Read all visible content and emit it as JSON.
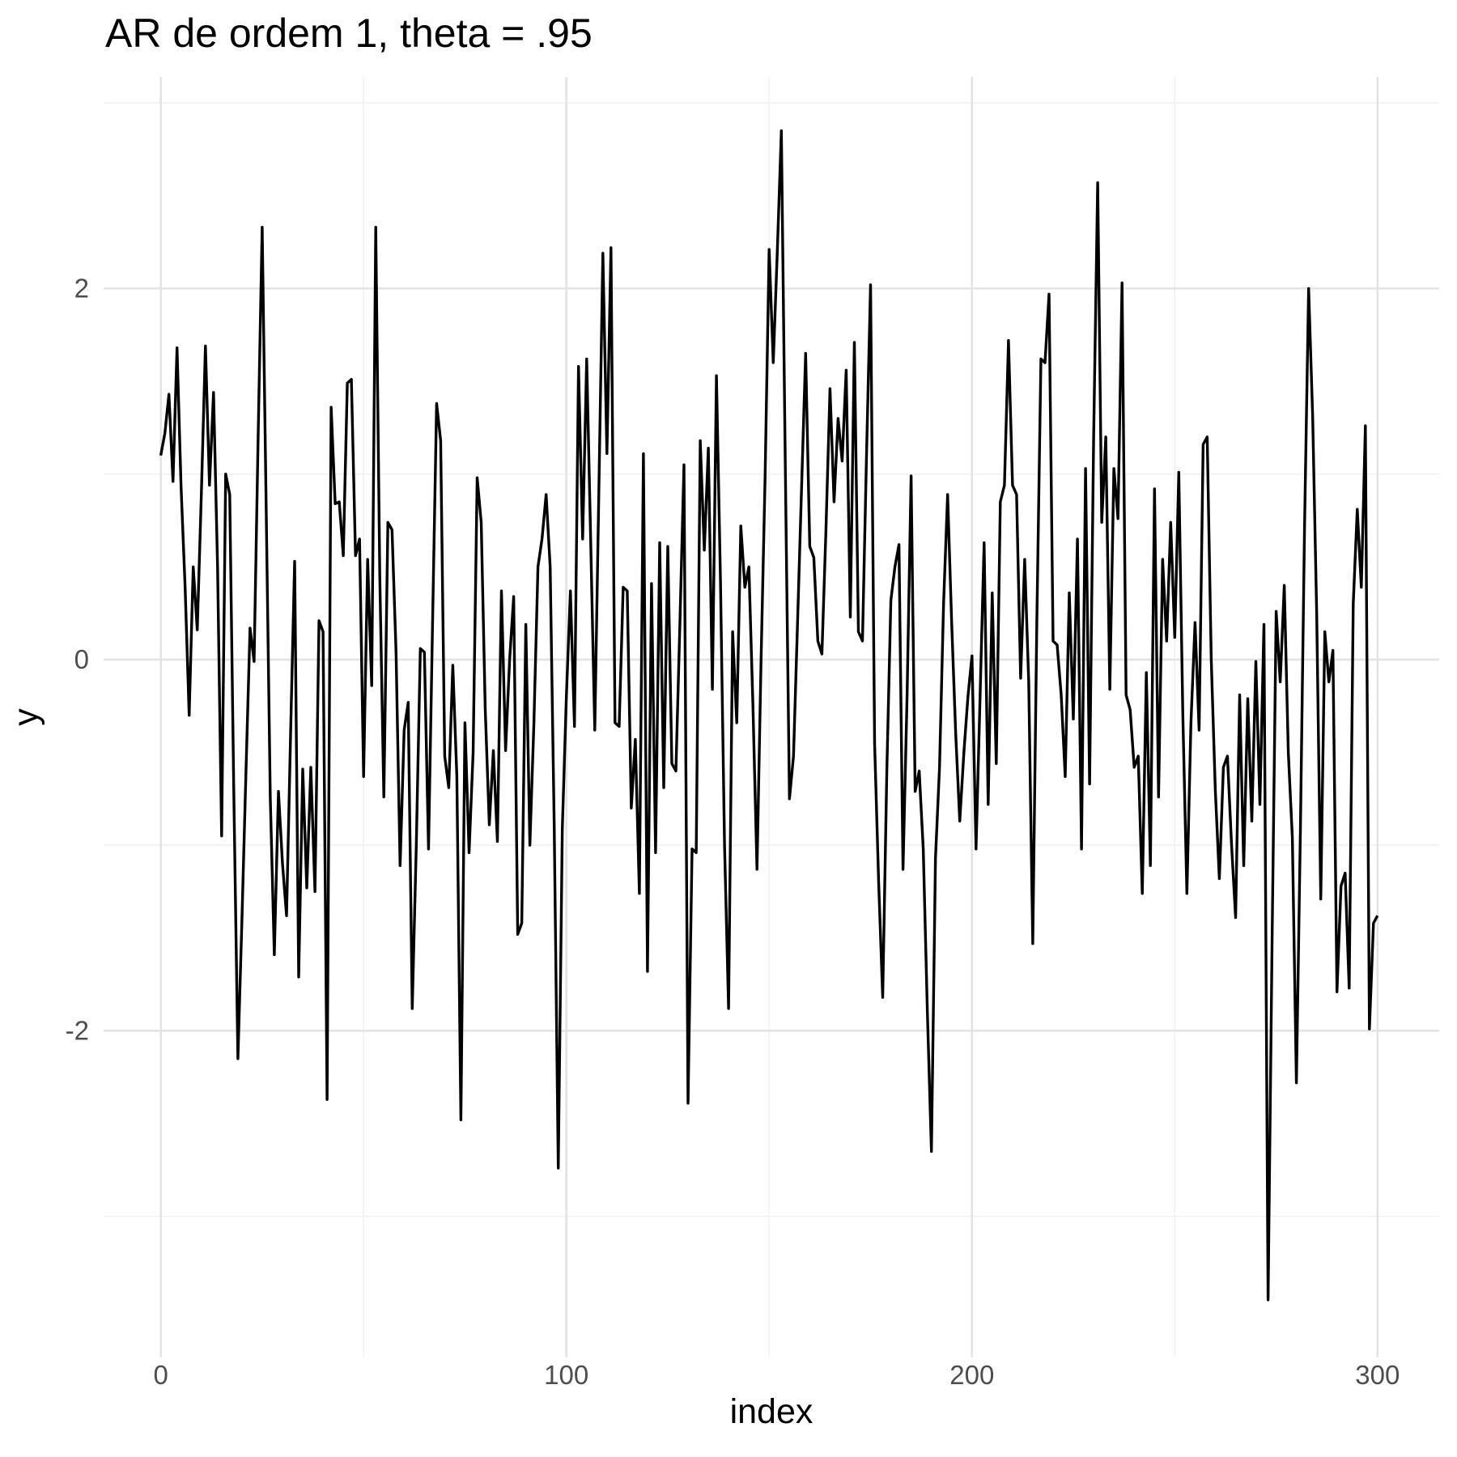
{
  "title": "AR de ordem 1, theta = .95",
  "colors": {
    "background": "#ffffff",
    "line": "#000000",
    "grid_major": "#e3e3e3",
    "grid_minor": "#f1f1f1",
    "tick_label": "#4d4d4d",
    "title_text": "#000000"
  },
  "chart_data": {
    "type": "line",
    "title": "AR de ordem 1, theta = .95",
    "xlabel": "index",
    "ylabel": "y",
    "legend_position": "none",
    "grid": true,
    "xlim": [
      -14.1,
      315.2
    ],
    "ylim": [
      -3.76,
      3.14
    ],
    "x_major_ticks": [
      0,
      100,
      200,
      300
    ],
    "x_minor_ticks": [
      50,
      150,
      250
    ],
    "y_major_ticks": [
      -2,
      0,
      2
    ],
    "y_minor_ticks": [
      -3,
      -1,
      1,
      3
    ],
    "x_tick_labels": [
      "0",
      "100",
      "200",
      "300"
    ],
    "y_tick_labels": [
      "-2",
      "0",
      "2"
    ],
    "x_start": 0,
    "x_step": 1,
    "values": [
      1.1,
      1.22,
      1.43,
      0.96,
      1.68,
      0.93,
      0.39,
      -0.3,
      0.5,
      0.16,
      0.9,
      1.69,
      0.94,
      1.44,
      0.5,
      -0.95,
      1.0,
      0.89,
      -0.7,
      -2.15,
      -1.4,
      -0.6,
      0.17,
      -0.01,
      1.2,
      2.33,
      0.8,
      -0.74,
      -1.59,
      -0.71,
      -1.1,
      -1.38,
      -0.4,
      0.53,
      -1.71,
      -0.59,
      -1.23,
      -0.58,
      -1.25,
      0.21,
      0.15,
      -2.37,
      1.36,
      0.84,
      0.85,
      0.56,
      1.49,
      1.51,
      0.56,
      0.65,
      -0.63,
      0.54,
      -0.14,
      2.33,
      0.45,
      -0.74,
      0.74,
      0.7,
      0.04,
      -1.11,
      -0.38,
      -0.23,
      -1.88,
      -1.0,
      0.06,
      0.04,
      -1.02,
      0.2,
      1.38,
      1.18,
      -0.52,
      -0.69,
      -0.03,
      -0.63,
      -2.48,
      -0.34,
      -1.04,
      -0.5,
      0.98,
      0.74,
      -0.27,
      -0.89,
      -0.49,
      -0.98,
      0.37,
      -0.49,
      0.0,
      0.34,
      -1.48,
      -1.42,
      0.19,
      -1.0,
      -0.34,
      0.5,
      0.65,
      0.89,
      0.5,
      -0.9,
      -2.74,
      -0.91,
      -0.2,
      0.37,
      -0.36,
      1.58,
      0.65,
      1.62,
      0.63,
      -0.38,
      0.9,
      2.19,
      1.11,
      2.22,
      -0.34,
      -0.36,
      0.39,
      0.37,
      -0.8,
      -0.43,
      -1.26,
      1.11,
      -1.68,
      0.41,
      -1.04,
      0.63,
      -0.69,
      0.61,
      -0.56,
      -0.6,
      0.2,
      1.05,
      -2.39,
      -1.02,
      -1.04,
      1.18,
      0.59,
      1.14,
      -0.16,
      1.53,
      0.42,
      -1.0,
      -1.88,
      0.15,
      -0.34,
      0.72,
      0.39,
      0.5,
      -0.25,
      -1.13,
      -0.01,
      0.98,
      2.21,
      1.6,
      2.2,
      2.85,
      1.0,
      -0.75,
      -0.52,
      0.2,
      0.93,
      1.65,
      0.61,
      0.55,
      0.1,
      0.03,
      0.7,
      1.46,
      0.85,
      1.3,
      1.07,
      1.56,
      0.23,
      1.71,
      0.15,
      0.1,
      1.1,
      2.02,
      -0.45,
      -1.2,
      -1.82,
      -0.6,
      0.32,
      0.5,
      0.62,
      -1.13,
      -0.2,
      0.99,
      -0.71,
      -0.6,
      -1.02,
      -1.9,
      -2.65,
      -1.07,
      -0.58,
      0.3,
      0.89,
      0.2,
      -0.4,
      -0.87,
      -0.5,
      -0.2,
      0.02,
      -1.02,
      -0.2,
      0.63,
      -0.78,
      0.36,
      -0.56,
      0.85,
      0.94,
      1.72,
      0.94,
      0.89,
      -0.1,
      0.54,
      -0.12,
      -1.53,
      0.2,
      1.62,
      1.6,
      1.97,
      0.1,
      0.08,
      -0.19,
      -0.63,
      0.36,
      -0.32,
      0.65,
      -1.02,
      1.03,
      -0.67,
      1.2,
      2.57,
      0.74,
      1.2,
      -0.16,
      1.03,
      0.76,
      2.03,
      -0.19,
      -0.27,
      -0.58,
      -0.52,
      -1.26,
      -0.07,
      -1.11,
      0.92,
      -0.74,
      0.54,
      0.1,
      0.74,
      0.12,
      1.01,
      -0.3,
      -1.26,
      -0.34,
      0.2,
      -0.38,
      1.16,
      1.2,
      0.0,
      -0.7,
      -1.18,
      -0.58,
      -0.52,
      -1.0,
      -1.39,
      -0.19,
      -1.11,
      -0.21,
      -0.87,
      -0.01,
      -0.78,
      0.19,
      -3.45,
      -1.5,
      0.26,
      -0.12,
      0.4,
      -0.5,
      -0.96,
      -2.28,
      -0.9,
      0.7,
      2.0,
      1.31,
      0.24,
      -1.29,
      0.15,
      -0.12,
      0.05,
      -1.79,
      -1.22,
      -1.15,
      -1.77,
      0.3,
      0.81,
      0.39,
      1.26,
      -1.99,
      -1.42,
      -1.38
    ]
  }
}
